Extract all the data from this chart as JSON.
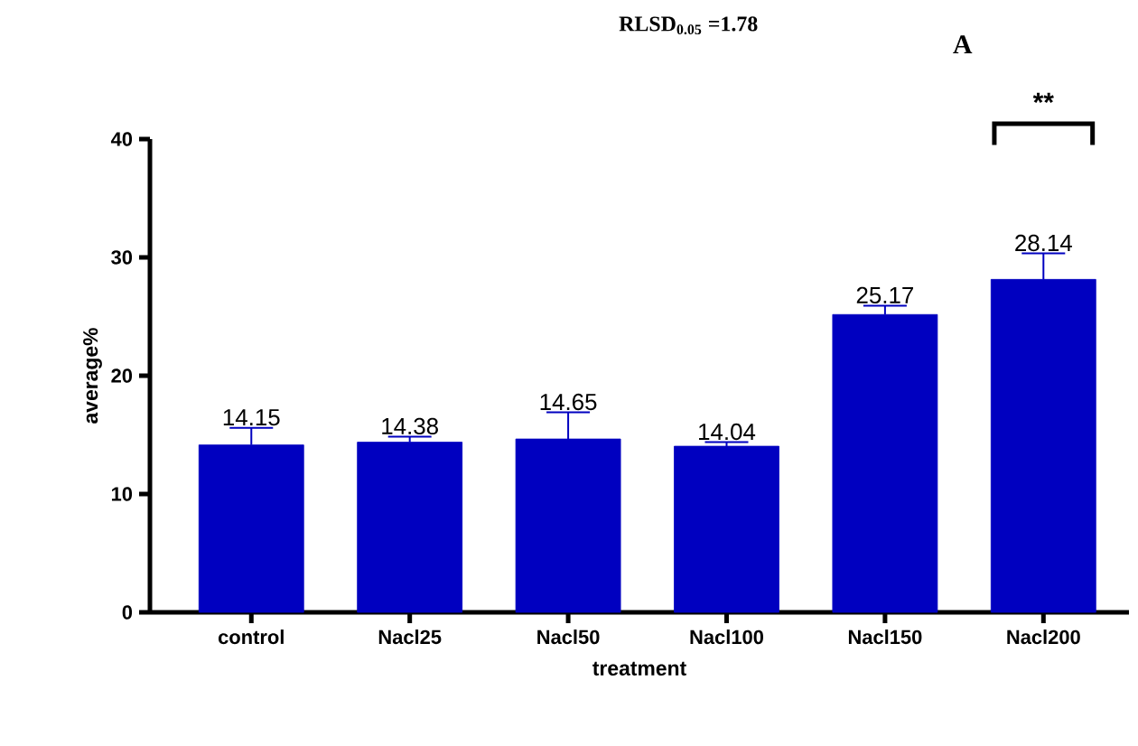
{
  "chart_data": {
    "type": "bar",
    "xlabel": "treatment",
    "ylabel": "average%",
    "categories": [
      "control",
      "Nacl25",
      "Nacl50",
      "Nacl100",
      "Nacl150",
      "Nacl200"
    ],
    "values": [
      14.15,
      14.38,
      14.65,
      14.04,
      25.17,
      28.14
    ],
    "errors": [
      1.45,
      0.47,
      2.25,
      0.34,
      0.75,
      2.2
    ],
    "color": "#0000c0",
    "ylim": [
      0,
      40
    ],
    "yticks": [
      0,
      10,
      20,
      30,
      40
    ],
    "data_labels": true,
    "annotations": [
      "RLSD$_{0.05}$ =1.78",
      "A",
      "**"
    ]
  }
}
